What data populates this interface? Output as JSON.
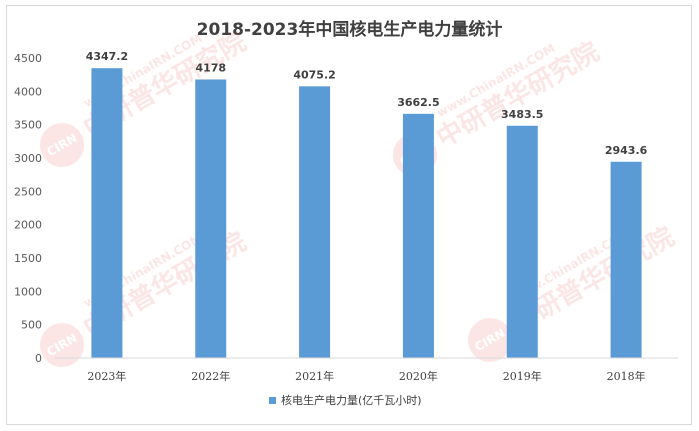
{
  "chart_data": {
    "type": "bar",
    "title": "2018-2023年中国核电生产电力量统计",
    "categories": [
      "2023年",
      "2022年",
      "2021年",
      "2020年",
      "2019年",
      "2018年"
    ],
    "series": [
      {
        "name": "核电生产电力量(亿千瓦小时)",
        "values": [
          4347.2,
          4178,
          4075.2,
          3662.5,
          3483.5,
          2943.6
        ]
      }
    ],
    "data_labels": [
      "4347.2",
      "4178",
      "4075.2",
      "3662.5",
      "3483.5",
      "2943.6"
    ],
    "y_ticks": [
      "0",
      "500",
      "1000",
      "1500",
      "2000",
      "2500",
      "3000",
      "3500",
      "4000",
      "4500"
    ],
    "ylim": [
      0,
      4500
    ],
    "xlabel": "",
    "ylabel": "",
    "grid": false,
    "legend_position": "bottom",
    "bar_color": "#5b9bd5"
  },
  "watermark": {
    "logo_text": "CIRN",
    "cn_text": "中研普华研究院",
    "en_text": "www.ChinaIRN.COM"
  }
}
